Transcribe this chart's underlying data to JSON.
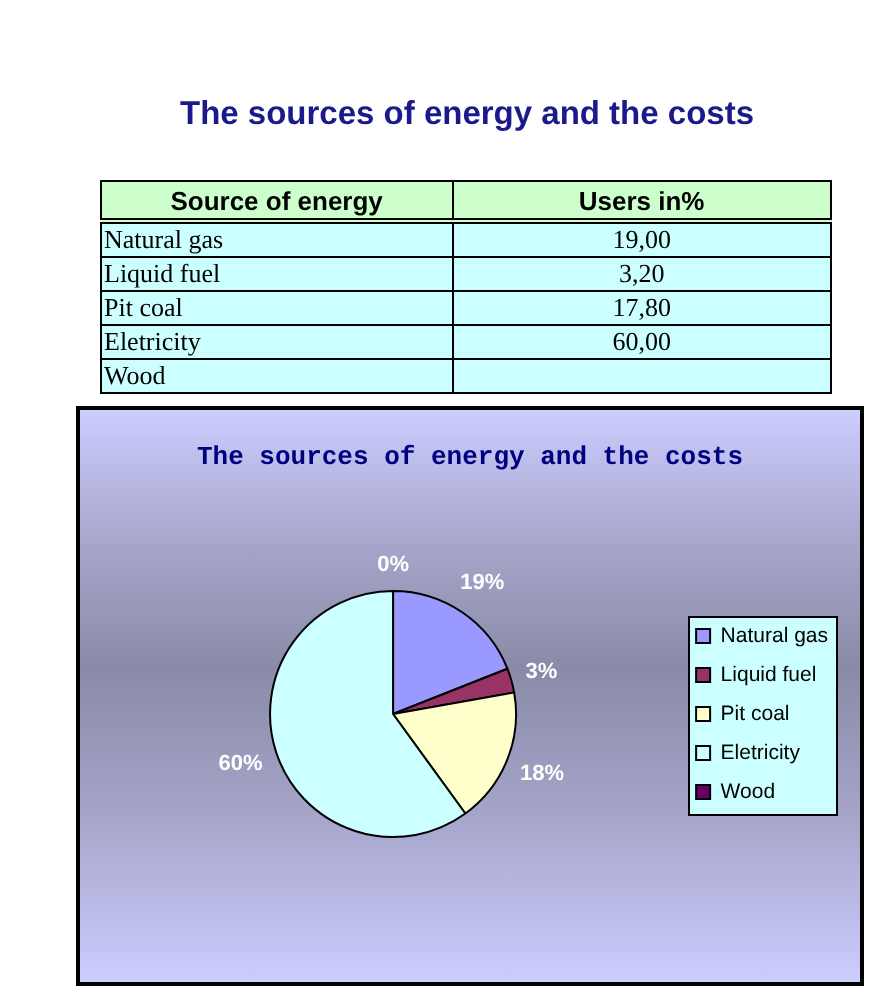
{
  "chart_data": [
    {
      "type": "other",
      "title": "The sources of energy and the costs",
      "categories": [
        "Natural gas",
        "Liquid fuel",
        "Pit coal",
        "Eletricity",
        "Wood"
      ],
      "values": [
        19,
        3.2,
        17.8,
        60,
        null
      ],
      "value_labels": [
        "19,00",
        "3,20",
        "17,80",
        "60,00",
        null
      ],
      "annotations": [
        "Source of energy",
        "Users in%"
      ]
    },
    {
      "type": "pie",
      "title": "The sources of energy and the costs",
      "categories": [
        "Natural gas",
        "Liquid fuel",
        "Pit coal",
        "Eletricity",
        "Wood"
      ],
      "values": [
        19,
        3.2,
        17.8,
        60,
        0
      ],
      "colors": [
        "#9999ff",
        "#993366",
        "#ffffcc",
        "#ccffff",
        "#660066"
      ],
      "value_labels": [
        "19%",
        "3%",
        "18%",
        "60%",
        "0%"
      ],
      "legend": "right"
    }
  ]
}
